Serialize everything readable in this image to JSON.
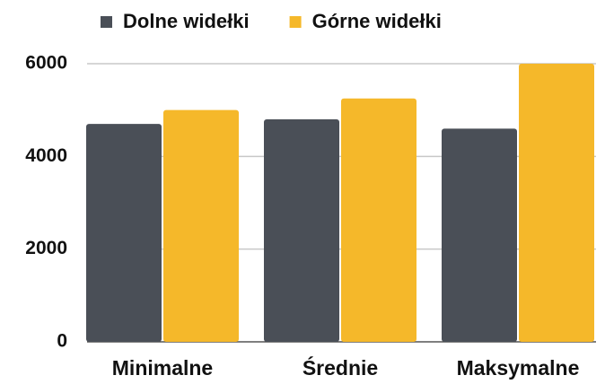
{
  "chart_data": {
    "type": "bar",
    "categories": [
      "Minimalne",
      "Średnie",
      "Maksymalne"
    ],
    "series": [
      {
        "name": "Dolne widełki",
        "color": "#4a4f57",
        "values": [
          4700,
          4800,
          4600
        ]
      },
      {
        "name": "Górne widełki",
        "color": "#f5b82a",
        "values": [
          5000,
          5250,
          6000
        ]
      }
    ],
    "ylim": [
      0,
      6000
    ],
    "yticks": [
      0,
      2000,
      4000,
      6000
    ],
    "grid": true,
    "legend": "top"
  }
}
